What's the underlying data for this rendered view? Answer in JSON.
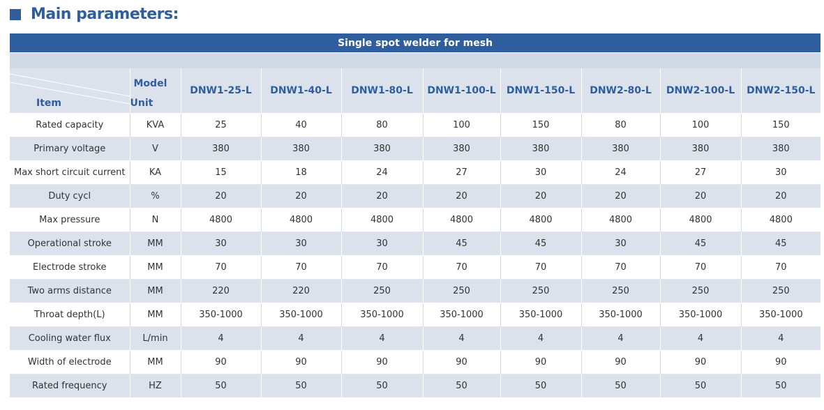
{
  "heading": {
    "title": "Main parameters:"
  },
  "table": {
    "band_title": "Single spot welder for mesh",
    "header": {
      "item_label": "Item",
      "model_label": "Model",
      "unit_label": "Unit",
      "models": [
        "DNW1-25-L",
        "DNW1-40-L",
        "DNW1-80-L",
        "DNW1-100-L",
        "DNW1-150-L",
        "DNW2-80-L",
        "DNW2-100-L",
        "DNW2-150-L"
      ]
    },
    "rows": [
      {
        "item": "Rated capacity",
        "unit": "KVA",
        "values": [
          "25",
          "40",
          "80",
          "100",
          "150",
          "80",
          "100",
          "150"
        ]
      },
      {
        "item": "Primary voltage",
        "unit": "V",
        "values": [
          "380",
          "380",
          "380",
          "380",
          "380",
          "380",
          "380",
          "380"
        ]
      },
      {
        "item": "Max short circuit current",
        "unit": "KA",
        "values": [
          "15",
          "18",
          "24",
          "27",
          "30",
          "24",
          "27",
          "30"
        ]
      },
      {
        "item": "Duty cycl",
        "unit": "%",
        "values": [
          "20",
          "20",
          "20",
          "20",
          "20",
          "20",
          "20",
          "20"
        ]
      },
      {
        "item": "Max pressure",
        "unit": "N",
        "values": [
          "4800",
          "4800",
          "4800",
          "4800",
          "4800",
          "4800",
          "4800",
          "4800"
        ]
      },
      {
        "item": "Operational stroke",
        "unit": "MM",
        "values": [
          "30",
          "30",
          "30",
          "45",
          "45",
          "30",
          "45",
          "45"
        ]
      },
      {
        "item": "Electrode stroke",
        "unit": "MM",
        "values": [
          "70",
          "70",
          "70",
          "70",
          "70",
          "70",
          "70",
          "70"
        ]
      },
      {
        "item": "Two arms distance",
        "unit": "MM",
        "values": [
          "220",
          "220",
          "250",
          "250",
          "250",
          "250",
          "250",
          "250"
        ]
      },
      {
        "item": "Throat depth(L)",
        "unit": "MM",
        "values": [
          "350-1000",
          "350-1000",
          "350-1000",
          "350-1000",
          "350-1000",
          "350-1000",
          "350-1000",
          "350-1000"
        ]
      },
      {
        "item": "Cooling water flux",
        "unit": "L/min",
        "values": [
          "4",
          "4",
          "4",
          "4",
          "4",
          "4",
          "4",
          "4"
        ]
      },
      {
        "item": "Width of electrode",
        "unit": "MM",
        "values": [
          "90",
          "90",
          "90",
          "90",
          "90",
          "90",
          "90",
          "90"
        ]
      },
      {
        "item": "Rated frequency",
        "unit": "HZ",
        "values": [
          "50",
          "50",
          "50",
          "50",
          "50",
          "50",
          "50",
          "50"
        ]
      }
    ]
  },
  "colors": {
    "accent": "#2f5e9e",
    "band_light": "#dbe2ec",
    "spacer": "#d0d9e6"
  }
}
